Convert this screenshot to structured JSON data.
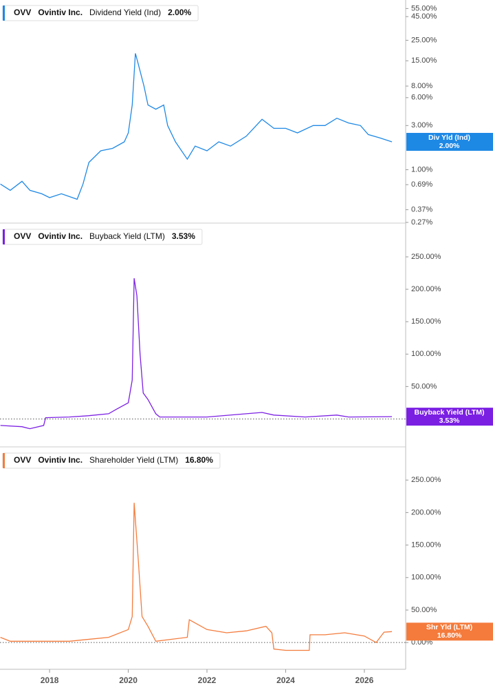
{
  "chart_data": [
    {
      "type": "line",
      "ticker": "OVV",
      "company": "Ovintiv Inc.",
      "title": "Dividend Yield (Ind)",
      "last_value_label": "2.00%",
      "tag": "Div Yld (Ind)",
      "color": "#1e88e5",
      "log": true,
      "xlim": [
        2016.74,
        2027.05
      ],
      "x": [
        2016.75,
        2017.0,
        2017.3,
        2017.5,
        2017.8,
        2018.0,
        2018.3,
        2018.7,
        2018.85,
        2019.0,
        2019.3,
        2019.6,
        2019.9,
        2020.0,
        2020.1,
        2020.18,
        2020.25,
        2020.4,
        2020.5,
        2020.7,
        2020.9,
        2021.0,
        2021.2,
        2021.5,
        2021.7,
        2022.0,
        2022.3,
        2022.6,
        2023.0,
        2023.4,
        2023.7,
        2024.0,
        2024.3,
        2024.7,
        2025.0,
        2025.3,
        2025.6,
        2025.9,
        2026.1,
        2026.4,
        2026.7
      ],
      "values": [
        0.7,
        0.6,
        0.75,
        0.6,
        0.55,
        0.5,
        0.55,
        0.48,
        0.7,
        1.2,
        1.6,
        1.7,
        2.0,
        2.5,
        5,
        18,
        14,
        8,
        5,
        4.5,
        5,
        3,
        2.0,
        1.3,
        1.8,
        1.6,
        2.0,
        1.8,
        2.3,
        3.5,
        2.8,
        2.8,
        2.5,
        3.0,
        3.0,
        3.6,
        3.2,
        3.0,
        2.4,
        2.2,
        2.0
      ],
      "ylim": [
        0.27,
        68
      ],
      "yticks": [
        {
          "value": 55,
          "label": "55.00%"
        },
        {
          "value": 45,
          "label": "45.00%"
        },
        {
          "value": 25,
          "label": "25.00%"
        },
        {
          "value": 15,
          "label": "15.00%"
        },
        {
          "value": 8,
          "label": "8.00%"
        },
        {
          "value": 6,
          "label": "6.00%"
        },
        {
          "value": 3,
          "label": "3.00%"
        },
        {
          "value": 1,
          "label": "1.00%"
        },
        {
          "value": 0.69,
          "label": "0.69%"
        },
        {
          "value": 0.37,
          "label": "0.37%"
        },
        {
          "value": 0.27,
          "label": "0.27%"
        }
      ]
    },
    {
      "type": "line",
      "ticker": "OVV",
      "company": "Ovintiv Inc.",
      "title": "Buyback Yield (LTM)",
      "last_value_label": "3.53%",
      "tag": "Buyback Yield (LTM)",
      "color": "#7b1fe3",
      "log": false,
      "xlim": [
        2016.74,
        2027.05
      ],
      "x": [
        2016.75,
        2017.3,
        2017.5,
        2017.85,
        2017.9,
        2018.5,
        2019.0,
        2019.5,
        2019.7,
        2020.0,
        2020.1,
        2020.15,
        2020.22,
        2020.3,
        2020.38,
        2020.5,
        2020.7,
        2020.8,
        2022.0,
        2023.0,
        2023.4,
        2023.7,
        2024.5,
        2025.3,
        2025.6,
        2026.7
      ],
      "values": [
        -10,
        -12,
        -15,
        -10,
        2,
        3,
        5,
        8,
        15,
        25,
        60,
        217,
        190,
        100,
        40,
        30,
        8,
        3,
        3,
        8,
        10,
        6,
        3,
        6,
        3,
        3.53
      ],
      "ylim": [
        -42,
        301
      ],
      "yticks": [
        {
          "value": 50,
          "label": "50.00%"
        },
        {
          "value": 100,
          "label": "100.00%"
        },
        {
          "value": 150,
          "label": "150.00%"
        },
        {
          "value": 200,
          "label": "200.00%"
        },
        {
          "value": 250,
          "label": "250.00%"
        }
      ]
    },
    {
      "type": "line",
      "ticker": "OVV",
      "company": "Ovintiv Inc.",
      "title": "Shareholder Yield (LTM)",
      "last_value_label": "16.80%",
      "tag": "Shr Yld (LTM)",
      "color": "#f47b3c",
      "log": false,
      "xlim": [
        2016.74,
        2027.05
      ],
      "xticks": [
        2018,
        2020,
        2022,
        2024,
        2026
      ],
      "x": [
        2016.75,
        2017.0,
        2018.5,
        2019.5,
        2020.0,
        2020.1,
        2020.15,
        2020.25,
        2020.35,
        2020.5,
        2020.7,
        2021.5,
        2021.55,
        2022.0,
        2022.5,
        2023.0,
        2023.5,
        2023.65,
        2023.7,
        2024.0,
        2024.6,
        2024.62,
        2025.0,
        2025.5,
        2026.0,
        2026.3,
        2026.5,
        2026.7
      ],
      "values": [
        8,
        2,
        2,
        8,
        20,
        40,
        215,
        130,
        40,
        25,
        2,
        8,
        35,
        20,
        15,
        18,
        25,
        15,
        -10,
        -12,
        -12,
        12,
        12,
        15,
        10,
        0,
        16,
        16.8
      ],
      "ylim": [
        -39,
        300
      ],
      "yticks": [
        {
          "value": 0,
          "label": "0.00%"
        },
        {
          "value": 50,
          "label": "50.00%"
        },
        {
          "value": 100,
          "label": "100.00%"
        },
        {
          "value": 150,
          "label": "150.00%"
        },
        {
          "value": 200,
          "label": "200.00%"
        },
        {
          "value": 250,
          "label": "250.00%"
        }
      ]
    }
  ]
}
